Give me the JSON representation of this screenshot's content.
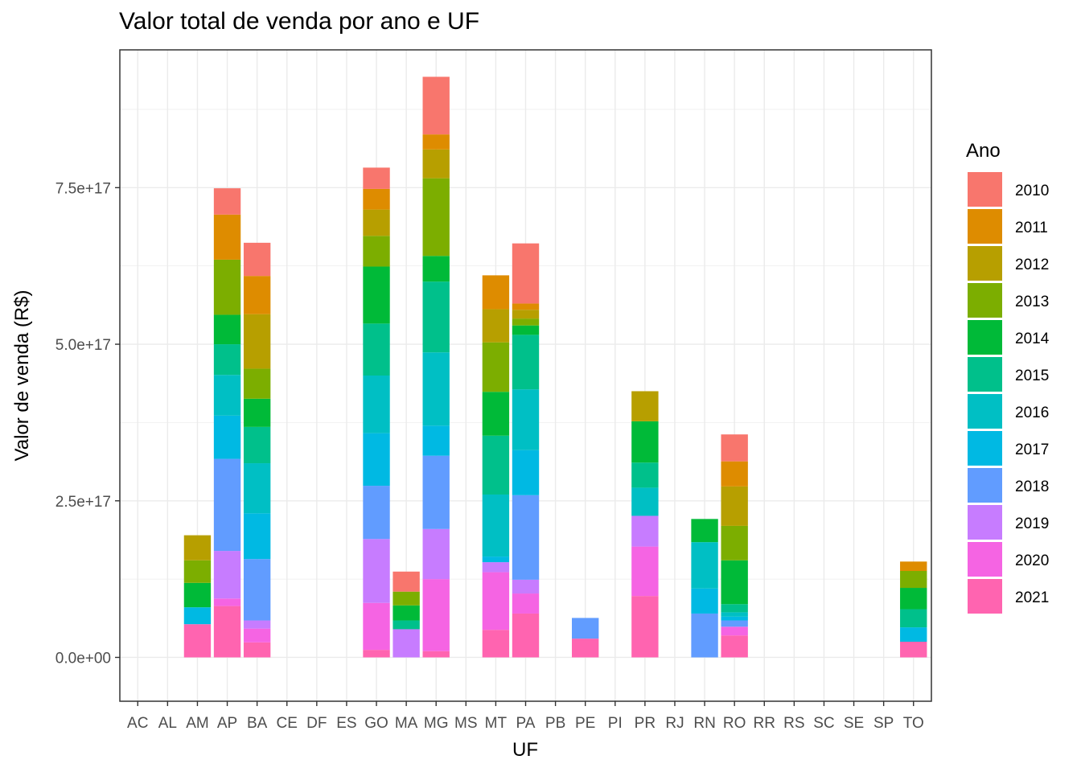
{
  "chart_data": {
    "type": "bar",
    "stacked": true,
    "title": "Valor total de venda por ano e UF",
    "xlabel": "UF",
    "ylabel": "Valor de venda (R$)",
    "ylim": [
      -7e+16,
      9.7e+17
    ],
    "yticks": [
      0,
      2.5e+17,
      5e+17,
      7.5e+17
    ],
    "ytick_labels": [
      "0.0e+00",
      "2.5e+17",
      "5.0e+17",
      "7.5e+17"
    ],
    "grid": true,
    "legend_title": "Ano",
    "legend_position": "right",
    "categories": [
      "AC",
      "AL",
      "AM",
      "AP",
      "BA",
      "CE",
      "DF",
      "ES",
      "GO",
      "MA",
      "MG",
      "MS",
      "MT",
      "PA",
      "PB",
      "PE",
      "PI",
      "PR",
      "RJ",
      "RN",
      "RO",
      "RR",
      "RS",
      "SC",
      "SE",
      "SP",
      "TO"
    ],
    "series": [
      {
        "name": "2021",
        "color": "#FF64B0",
        "values": [
          0,
          0,
          5.3e+16,
          8.2e+16,
          2.4e+16,
          0,
          0,
          0,
          1.2e+16,
          0,
          1e+16,
          0,
          4.4e+16,
          7e+16,
          0,
          3e+16,
          0,
          9.8e+16,
          0,
          0,
          3.5e+16,
          0,
          0,
          0,
          0,
          0,
          2.5e+16
        ]
      },
      {
        "name": "2020",
        "color": "#F564E3",
        "values": [
          0,
          0,
          0,
          1.2e+16,
          2.2e+16,
          0,
          0,
          0,
          7.5e+16,
          0,
          1.15e+17,
          0,
          9.2e+16,
          3.2e+16,
          0,
          0,
          0,
          7.9e+16,
          0,
          0,
          1.4e+16,
          0,
          0,
          0,
          0,
          0,
          0
        ]
      },
      {
        "name": "2019",
        "color": "#C77CFF",
        "values": [
          0,
          0,
          0,
          7.6e+16,
          1.3e+16,
          0,
          0,
          0,
          1.02e+17,
          4.5e+16,
          8e+16,
          0,
          1.6e+16,
          2.2e+16,
          0,
          0,
          0,
          4.9e+16,
          0,
          0,
          0,
          0,
          0,
          0,
          0,
          0,
          0
        ]
      },
      {
        "name": "2018",
        "color": "#619CFF",
        "values": [
          0,
          0,
          0,
          1.47e+17,
          9.8e+16,
          0,
          0,
          0,
          8.5e+16,
          0,
          1.17e+17,
          0,
          0,
          1.35e+17,
          0,
          3.3e+16,
          0,
          0,
          0,
          7e+16,
          1e+16,
          0,
          0,
          0,
          0,
          0,
          0
        ]
      },
      {
        "name": "2017",
        "color": "#00B9E3",
        "values": [
          0,
          0,
          2.7e+16,
          6.9e+16,
          7.3e+16,
          0,
          0,
          0,
          8.4e+16,
          0,
          4.8e+16,
          0,
          9000000000000000.0,
          7.2e+16,
          0,
          0,
          0,
          0,
          0,
          4e+16,
          6000000000000000.0,
          0,
          0,
          0,
          0,
          0,
          2.3e+16
        ]
      },
      {
        "name": "2016",
        "color": "#00BFC4",
        "values": [
          0,
          0,
          0,
          6.5e+16,
          8e+16,
          0,
          0,
          0,
          9.2e+16,
          0,
          1.17e+17,
          0,
          9.9e+16,
          9.7e+16,
          0,
          0,
          0,
          4.5e+16,
          0,
          7.4e+16,
          7000000000000000.0,
          0,
          0,
          0,
          0,
          0,
          0
        ]
      },
      {
        "name": "2015",
        "color": "#00C08B",
        "values": [
          0,
          0,
          0,
          4.9e+16,
          5.8e+16,
          0,
          0,
          0,
          8.3e+16,
          1.4e+16,
          1.13e+17,
          0,
          9.4e+16,
          8.7e+16,
          0,
          0,
          0,
          4e+16,
          0,
          0,
          1.3e+16,
          0,
          0,
          0,
          0,
          0,
          2.9e+16
        ]
      },
      {
        "name": "2014",
        "color": "#00BA38",
        "values": [
          0,
          0,
          3.9e+16,
          4.7e+16,
          4.5e+16,
          0,
          0,
          0,
          9.1e+16,
          2.4e+16,
          4.1e+16,
          0,
          7e+16,
          1.5e+16,
          0,
          0,
          0,
          6.6e+16,
          0,
          3.7e+16,
          7e+16,
          0,
          0,
          0,
          0,
          0,
          3.4e+16
        ]
      },
      {
        "name": "2013",
        "color": "#7CAE00",
        "values": [
          0,
          0,
          3.6e+16,
          8.8e+16,
          4.8e+16,
          0,
          0,
          0,
          4.9e+16,
          2.2e+16,
          1.24e+17,
          0,
          7.9e+16,
          1.1e+16,
          0,
          0,
          0,
          0,
          0,
          0,
          5.5e+16,
          0,
          0,
          0,
          0,
          0,
          2.7e+16
        ]
      },
      {
        "name": "2012",
        "color": "#B79F00",
        "values": [
          0,
          0,
          4e+16,
          0,
          8.7e+16,
          0,
          0,
          0,
          4.2e+16,
          0,
          4.6e+16,
          0,
          5.3e+16,
          1.4e+16,
          0,
          0,
          0,
          4.8e+16,
          0,
          0,
          6.3e+16,
          0,
          0,
          0,
          0,
          0,
          0
        ]
      },
      {
        "name": "2011",
        "color": "#DE8C00",
        "values": [
          0,
          0,
          0,
          7.2e+16,
          6.1e+16,
          0,
          0,
          0,
          3.3e+16,
          0,
          2.4e+16,
          0,
          5.4e+16,
          1e+16,
          0,
          0,
          0,
          0,
          0,
          0,
          4e+16,
          0,
          0,
          0,
          0,
          0,
          1.5e+16
        ]
      },
      {
        "name": "2010",
        "color": "#F8766D",
        "values": [
          0,
          0,
          0,
          4.2e+16,
          5.3e+16,
          0,
          0,
          0,
          3.4e+16,
          3.2e+16,
          9.2e+16,
          0,
          0,
          9.6e+16,
          0,
          0,
          0,
          0,
          0,
          0,
          4.3e+16,
          0,
          0,
          0,
          0,
          0,
          0
        ]
      }
    ]
  }
}
